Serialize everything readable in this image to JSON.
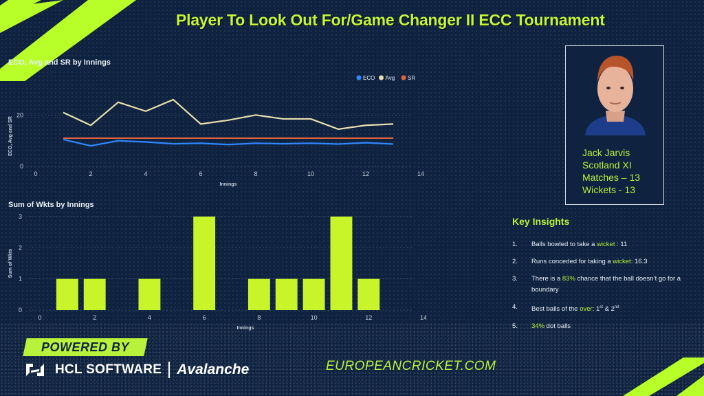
{
  "title": "Player To Look Out For/Game Changer II ECC Tournament",
  "chart_data": [
    {
      "type": "line",
      "title": "ECO, Avg and SR by Innings",
      "xlabel": "Innings",
      "ylabel": "ECO, Avg and SR",
      "xlim": [
        0,
        14
      ],
      "ylim": [
        0,
        30
      ],
      "xticks": [
        "0",
        "2",
        "4",
        "6",
        "8",
        "10",
        "12",
        "14"
      ],
      "yticks": [
        "0",
        "20"
      ],
      "legend_position": "top-right",
      "x": [
        1,
        2,
        3,
        4,
        5,
        6,
        7,
        8,
        9,
        10,
        11,
        12,
        13
      ],
      "series": [
        {
          "name": "ECO",
          "color": "#2e88ff",
          "values": [
            10.5,
            8,
            10,
            9.5,
            8.8,
            9,
            8.5,
            9,
            8.8,
            9,
            8.7,
            9.2,
            8.7
          ]
        },
        {
          "name": "Avg",
          "color": "#e8dfae",
          "values": [
            21,
            16,
            25,
            21.5,
            26,
            16.5,
            18,
            20,
            18.5,
            18.5,
            14.5,
            16,
            16.5
          ]
        },
        {
          "name": "SR",
          "color": "#e0633c",
          "values": [
            11,
            11,
            11,
            11,
            11,
            11,
            11,
            11,
            11,
            11,
            11,
            11,
            11
          ]
        }
      ]
    },
    {
      "type": "bar",
      "title": "Sum of Wkts by Innings",
      "xlabel": "Innings",
      "ylabel": "Sum of Wkts",
      "xlim": [
        0,
        14
      ],
      "ylim": [
        0,
        3
      ],
      "xticks": [
        "0",
        "2",
        "4",
        "6",
        "8",
        "10",
        "12",
        "14"
      ],
      "yticks": [
        "0",
        "1",
        "2",
        "3"
      ],
      "color": "#c8f52a",
      "x": [
        1,
        2,
        4,
        6,
        8,
        9,
        10,
        11,
        12
      ],
      "values": [
        1,
        1,
        1,
        3,
        1,
        1,
        1,
        3,
        1
      ]
    }
  ],
  "profile": {
    "name": "Jack Jarvis",
    "team": "Scotland XI",
    "matches": "Matches – 13",
    "wickets": "Wickets - 13"
  },
  "insights": {
    "title": "Key Insights",
    "items": [
      {
        "num": "1.",
        "pre": "Balls bowled to take a ",
        "hl": "wicket",
        "post": " : 11",
        "sup1": "",
        "mid": "",
        "sup2": ""
      },
      {
        "num": "2.",
        "pre": "Runs conceded for taking a ",
        "hl": "wicket",
        "post": ": 16.3",
        "sup1": "",
        "mid": "",
        "sup2": ""
      },
      {
        "num": "3.",
        "pre": "There is a ",
        "hl": "83%",
        "post": " chance that the ball doesn’t go for a boundary",
        "sup1": "",
        "mid": "",
        "sup2": ""
      },
      {
        "num": "4.",
        "pre": "Best balls of the ",
        "hl": "over",
        "post": ": 1",
        "sup1": "st",
        "mid": " & 2",
        "sup2": "nd"
      },
      {
        "num": "5.",
        "pre": "",
        "hl": "34%",
        "post": " dot balls",
        "sup1": "",
        "mid": "",
        "sup2": ""
      }
    ]
  },
  "footer": {
    "powered_by": "POWERED BY",
    "hcl": "HCL SOFTWARE",
    "avalanche": "Avalanche",
    "site": "EUROPEANCRICKET.COM"
  },
  "colors": {
    "background": "#0f2340",
    "accent": "#b8f23b"
  },
  "icons": [
    "avatar-photo",
    "hcl-logo-icon"
  ]
}
